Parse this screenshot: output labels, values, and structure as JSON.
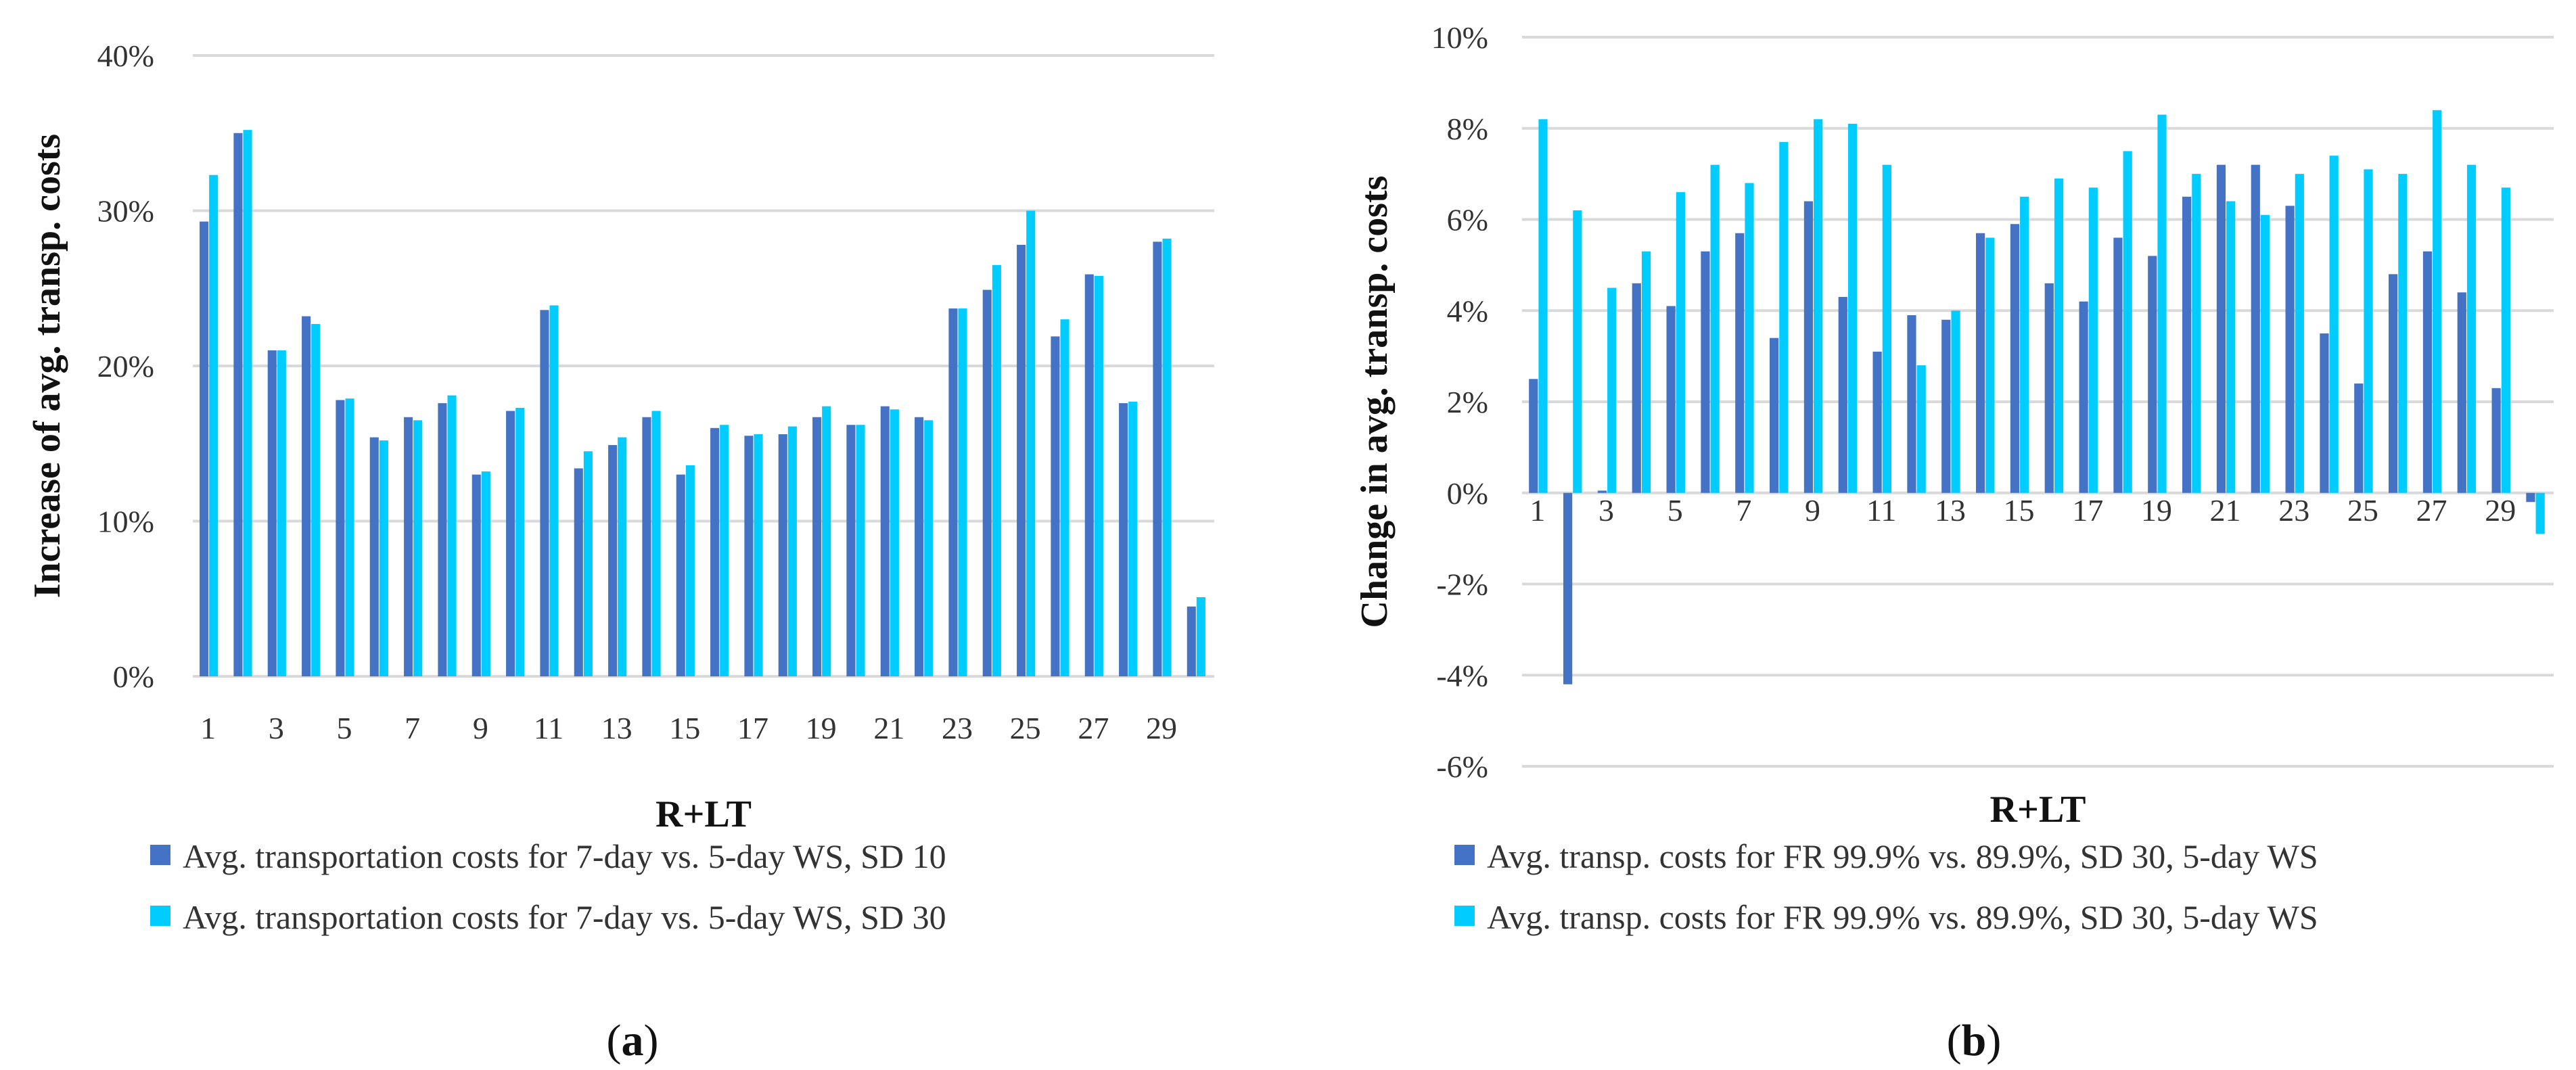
{
  "chart_data": [
    {
      "type": "bar",
      "panel_label": {
        "open": "(",
        "letter": "a",
        "close": ")"
      },
      "xlabel": "R+LT",
      "ylabel": "Increase of avg. transp. costs",
      "ylim": [
        0,
        40
      ],
      "yticks": [
        "0%",
        "10%",
        "20%",
        "30%",
        "40%"
      ],
      "grid": true,
      "legend_position": "bottom",
      "categories": [
        1,
        2,
        3,
        4,
        5,
        6,
        7,
        8,
        9,
        10,
        11,
        12,
        13,
        14,
        15,
        16,
        17,
        18,
        19,
        20,
        21,
        22,
        23,
        24,
        25,
        26,
        27,
        28,
        29,
        30
      ],
      "xtick_labels": [
        "1",
        "3",
        "5",
        "7",
        "9",
        "11",
        "13",
        "15",
        "17",
        "19",
        "21",
        "23",
        "25",
        "27",
        "29"
      ],
      "colors": [
        "#4472c4",
        "#00ccff"
      ],
      "series": [
        {
          "name": "Avg. transportation costs for 7-day vs. 5-day WS, SD 10",
          "values": [
            29.3,
            35.0,
            21.0,
            23.2,
            17.8,
            15.4,
            16.7,
            17.6,
            13.0,
            17.1,
            23.6,
            13.4,
            14.9,
            16.7,
            13.0,
            16.0,
            15.5,
            15.6,
            16.7,
            16.2,
            17.4,
            16.7,
            23.7,
            24.9,
            27.8,
            21.9,
            25.9,
            17.6,
            28.0,
            4.5
          ]
        },
        {
          "name": "Avg. transportation costs for 7-day vs. 5-day WS, SD 30",
          "values": [
            32.3,
            35.2,
            21.0,
            22.7,
            17.9,
            15.2,
            16.5,
            18.1,
            13.2,
            17.3,
            23.9,
            14.5,
            15.4,
            17.1,
            13.6,
            16.2,
            15.6,
            16.1,
            17.4,
            16.2,
            17.2,
            16.5,
            23.7,
            26.5,
            30.0,
            23.0,
            25.8,
            17.7,
            28.2,
            5.1
          ]
        }
      ]
    },
    {
      "type": "bar",
      "panel_label": {
        "open": "(",
        "letter": "b",
        "close": ")"
      },
      "xlabel": "R+LT",
      "ylabel": "Change in avg. transp. costs",
      "ylim": [
        -6,
        10
      ],
      "yticks": [
        "-6%",
        "-4%",
        "-2%",
        "0%",
        "2%",
        "4%",
        "6%",
        "8%",
        "10%"
      ],
      "grid": true,
      "legend_position": "bottom",
      "categories": [
        1,
        2,
        3,
        4,
        5,
        6,
        7,
        8,
        9,
        10,
        11,
        12,
        13,
        14,
        15,
        16,
        17,
        18,
        19,
        20,
        21,
        22,
        23,
        24,
        25,
        26,
        27,
        28,
        29,
        30
      ],
      "xtick_labels": [
        "1",
        "3",
        "5",
        "7",
        "9",
        "11",
        "13",
        "15",
        "17",
        "19",
        "21",
        "23",
        "25",
        "27",
        "29"
      ],
      "colors": [
        "#4472c4",
        "#00ccff"
      ],
      "series": [
        {
          "name": "Avg. transp. costs for FR 99.9% vs. 89.9%, SD 30, 5-day WS",
          "values": [
            2.5,
            -4.2,
            0.05,
            4.6,
            4.1,
            5.3,
            5.7,
            3.4,
            6.4,
            4.3,
            3.1,
            3.9,
            3.8,
            5.7,
            5.9,
            4.6,
            4.2,
            5.6,
            5.2,
            6.5,
            7.2,
            7.2,
            6.3,
            3.5,
            2.4,
            4.8,
            5.3,
            4.4,
            2.3,
            -0.2
          ]
        },
        {
          "name": "Avg. transp. costs for FR 99.9% vs. 89.9%, SD 30, 5-day WS",
          "values": [
            8.2,
            6.2,
            4.5,
            5.3,
            6.6,
            7.2,
            6.8,
            7.7,
            8.2,
            8.1,
            7.2,
            2.8,
            4.0,
            5.6,
            6.5,
            6.9,
            6.7,
            7.5,
            8.3,
            7.0,
            6.4,
            6.1,
            7.0,
            7.4,
            7.1,
            7.0,
            8.4,
            7.2,
            6.7,
            -0.9
          ]
        }
      ]
    }
  ]
}
